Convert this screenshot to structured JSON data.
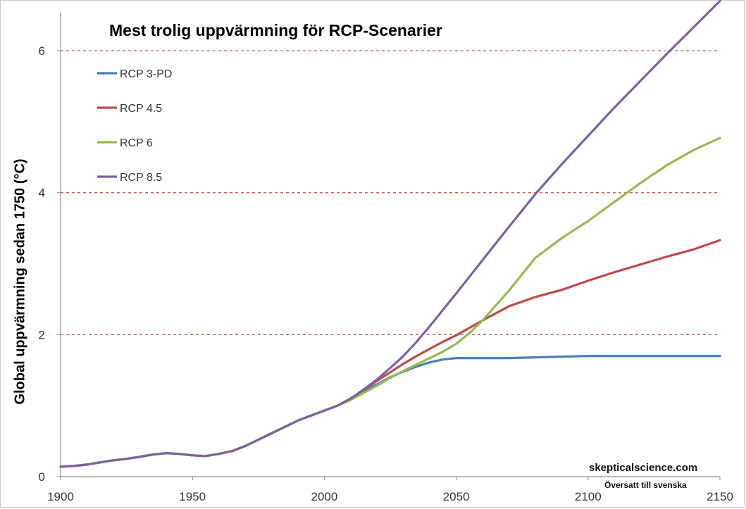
{
  "chart_data": {
    "type": "line",
    "title": "Mest trolig uppvärmning för RCP-Scenarier",
    "ylabel": "Global uppvärmning sedan 1750 (°C)",
    "xlabel": "",
    "xlim": [
      1900,
      2150
    ],
    "ylim": [
      0,
      6.5
    ],
    "x_ticks": [
      "1900",
      "1950",
      "2000",
      "2050",
      "2100",
      "2150"
    ],
    "y_ticks": [
      "0",
      "2",
      "4",
      "6"
    ],
    "gridlines_y": [
      2,
      4,
      6
    ],
    "grid_style": "dashed red horizontal",
    "legend_position": "top-left",
    "credit": "skepticalscience.com",
    "credit_note": "Översatt till svenska",
    "series": [
      {
        "name": "RCP 3-PD",
        "color": "#4a7ebb",
        "x": [
          1900,
          1905,
          1910,
          1915,
          1920,
          1925,
          1930,
          1935,
          1940,
          1945,
          1950,
          1955,
          1960,
          1965,
          1970,
          1975,
          1980,
          1985,
          1990,
          1995,
          2000,
          2005,
          2010,
          2015,
          2020,
          2025,
          2030,
          2035,
          2040,
          2045,
          2050,
          2060,
          2070,
          2080,
          2090,
          2100,
          2110,
          2120,
          2130,
          2140,
          2150
        ],
        "y": [
          0.14,
          0.15,
          0.17,
          0.2,
          0.23,
          0.25,
          0.28,
          0.31,
          0.33,
          0.32,
          0.3,
          0.29,
          0.32,
          0.36,
          0.43,
          0.52,
          0.61,
          0.7,
          0.79,
          0.86,
          0.93,
          1.0,
          1.1,
          1.2,
          1.3,
          1.4,
          1.48,
          1.55,
          1.61,
          1.65,
          1.67,
          1.67,
          1.67,
          1.68,
          1.69,
          1.7,
          1.7,
          1.7,
          1.7,
          1.7,
          1.7
        ]
      },
      {
        "name": "RCP 4.5",
        "color": "#be4b48",
        "x": [
          1900,
          1905,
          1910,
          1915,
          1920,
          1925,
          1930,
          1935,
          1940,
          1945,
          1950,
          1955,
          1960,
          1965,
          1970,
          1975,
          1980,
          1985,
          1990,
          1995,
          2000,
          2005,
          2010,
          2015,
          2020,
          2025,
          2030,
          2035,
          2040,
          2045,
          2050,
          2060,
          2070,
          2080,
          2090,
          2100,
          2110,
          2120,
          2130,
          2140,
          2150
        ],
        "y": [
          0.14,
          0.15,
          0.17,
          0.2,
          0.23,
          0.25,
          0.28,
          0.31,
          0.33,
          0.32,
          0.3,
          0.29,
          0.32,
          0.36,
          0.43,
          0.52,
          0.61,
          0.7,
          0.79,
          0.86,
          0.93,
          1.0,
          1.1,
          1.22,
          1.35,
          1.47,
          1.59,
          1.7,
          1.8,
          1.9,
          1.99,
          2.2,
          2.4,
          2.53,
          2.63,
          2.76,
          2.88,
          2.99,
          3.1,
          3.2,
          3.33
        ]
      },
      {
        "name": "RCP 6",
        "color": "#98b954",
        "x": [
          1900,
          1905,
          1910,
          1915,
          1920,
          1925,
          1930,
          1935,
          1940,
          1945,
          1950,
          1955,
          1960,
          1965,
          1970,
          1975,
          1980,
          1985,
          1990,
          1995,
          2000,
          2005,
          2010,
          2015,
          2020,
          2025,
          2030,
          2035,
          2040,
          2045,
          2050,
          2055,
          2060,
          2070,
          2080,
          2090,
          2100,
          2110,
          2120,
          2130,
          2140,
          2150
        ],
        "y": [
          0.14,
          0.15,
          0.17,
          0.2,
          0.23,
          0.25,
          0.28,
          0.31,
          0.33,
          0.32,
          0.3,
          0.29,
          0.32,
          0.36,
          0.43,
          0.52,
          0.61,
          0.7,
          0.79,
          0.86,
          0.93,
          1.0,
          1.08,
          1.18,
          1.28,
          1.39,
          1.49,
          1.58,
          1.67,
          1.76,
          1.87,
          2.02,
          2.2,
          2.62,
          3.08,
          3.36,
          3.6,
          3.87,
          4.14,
          4.39,
          4.6,
          4.77
        ]
      },
      {
        "name": "RCP 8.5",
        "color": "#7d60a0",
        "x": [
          1900,
          1905,
          1910,
          1915,
          1920,
          1925,
          1930,
          1935,
          1940,
          1945,
          1950,
          1955,
          1960,
          1965,
          1970,
          1975,
          1980,
          1985,
          1990,
          1995,
          2000,
          2005,
          2010,
          2015,
          2020,
          2025,
          2030,
          2035,
          2040,
          2045,
          2050,
          2060,
          2070,
          2080,
          2090,
          2100,
          2110,
          2120,
          2130,
          2140,
          2150
        ],
        "y": [
          0.14,
          0.15,
          0.17,
          0.2,
          0.23,
          0.25,
          0.28,
          0.31,
          0.33,
          0.32,
          0.3,
          0.29,
          0.32,
          0.36,
          0.43,
          0.52,
          0.61,
          0.7,
          0.79,
          0.86,
          0.93,
          1.0,
          1.1,
          1.23,
          1.37,
          1.53,
          1.7,
          1.9,
          2.12,
          2.35,
          2.58,
          3.05,
          3.52,
          3.98,
          4.4,
          4.8,
          5.2,
          5.58,
          5.96,
          6.33,
          6.7
        ]
      }
    ]
  }
}
